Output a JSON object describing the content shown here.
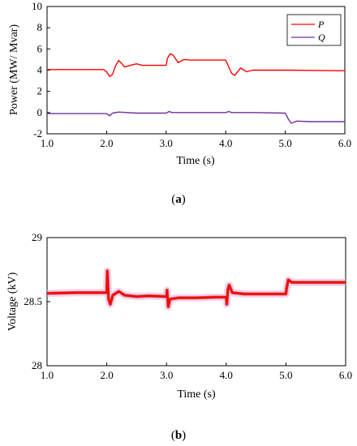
{
  "chart_data": [
    {
      "type": "line",
      "panel_label": "(a)",
      "panel_letter": "a",
      "xlabel": "Time (s)",
      "ylabel": "Power (MW/ Mvar)",
      "xlim": [
        1.0,
        6.0
      ],
      "ylim": [
        -2,
        10
      ],
      "x_ticks": [
        "1.0",
        "2.0",
        "3.0",
        "4.0",
        "5.0",
        "6.0"
      ],
      "y_ticks": [
        "-2",
        "0",
        "2",
        "4",
        "6",
        "8",
        "10"
      ],
      "legend_position": "top-right",
      "series": [
        {
          "name": "P",
          "color": "#ff0000",
          "points": [
            [
              1.0,
              4.05
            ],
            [
              1.95,
              4.05
            ],
            [
              2.0,
              3.85
            ],
            [
              2.05,
              3.4
            ],
            [
              2.1,
              3.6
            ],
            [
              2.15,
              4.4
            ],
            [
              2.2,
              4.9
            ],
            [
              2.25,
              4.65
            ],
            [
              2.3,
              4.3
            ],
            [
              2.4,
              4.45
            ],
            [
              2.5,
              4.6
            ],
            [
              2.6,
              4.45
            ],
            [
              2.8,
              4.45
            ],
            [
              3.0,
              4.45
            ],
            [
              3.02,
              5.1
            ],
            [
              3.07,
              5.55
            ],
            [
              3.12,
              5.4
            ],
            [
              3.2,
              4.7
            ],
            [
              3.3,
              5.0
            ],
            [
              3.4,
              4.95
            ],
            [
              3.6,
              4.95
            ],
            [
              3.8,
              4.95
            ],
            [
              4.0,
              4.95
            ],
            [
              4.05,
              4.3
            ],
            [
              4.1,
              3.7
            ],
            [
              4.15,
              3.5
            ],
            [
              4.25,
              4.2
            ],
            [
              4.35,
              3.85
            ],
            [
              4.45,
              4.0
            ],
            [
              4.6,
              4.0
            ],
            [
              5.0,
              4.0
            ],
            [
              6.0,
              3.95
            ]
          ]
        },
        {
          "name": "Q",
          "color": "#7030a0",
          "points": [
            [
              1.0,
              -0.1
            ],
            [
              2.0,
              -0.1
            ],
            [
              2.05,
              -0.3
            ],
            [
              2.1,
              -0.05
            ],
            [
              2.2,
              0.05
            ],
            [
              2.5,
              -0.05
            ],
            [
              3.0,
              -0.05
            ],
            [
              3.05,
              0.1
            ],
            [
              3.1,
              0.0
            ],
            [
              3.5,
              0.0
            ],
            [
              4.0,
              0.0
            ],
            [
              4.05,
              0.1
            ],
            [
              4.1,
              0.0
            ],
            [
              4.5,
              0.0
            ],
            [
              5.0,
              -0.05
            ],
            [
              5.05,
              -0.6
            ],
            [
              5.1,
              -1.0
            ],
            [
              5.2,
              -0.8
            ],
            [
              5.4,
              -0.85
            ],
            [
              6.0,
              -0.85
            ]
          ]
        }
      ]
    },
    {
      "type": "line",
      "panel_label": "(b)",
      "panel_letter": "b",
      "xlabel": "Time (s)",
      "ylabel": "Voltage (kV)",
      "xlim": [
        1.0,
        6.0
      ],
      "ylim": [
        28,
        29
      ],
      "x_ticks": [
        "1.0",
        "2.0",
        "3.0",
        "4.0",
        "5.0",
        "6.0"
      ],
      "y_ticks": [
        "28",
        "28.5",
        "29"
      ],
      "series": [
        {
          "color": "#ff0000",
          "band_color": "#f0a8e0",
          "points": [
            [
              1.0,
              28.565
            ],
            [
              1.5,
              28.57
            ],
            [
              2.0,
              28.57
            ],
            [
              2.01,
              28.74
            ],
            [
              2.03,
              28.52
            ],
            [
              2.06,
              28.48
            ],
            [
              2.1,
              28.55
            ],
            [
              2.2,
              28.58
            ],
            [
              2.3,
              28.55
            ],
            [
              2.5,
              28.54
            ],
            [
              2.7,
              28.545
            ],
            [
              3.0,
              28.54
            ],
            [
              3.01,
              28.59
            ],
            [
              3.03,
              28.46
            ],
            [
              3.06,
              28.52
            ],
            [
              3.2,
              28.53
            ],
            [
              3.5,
              28.53
            ],
            [
              3.8,
              28.535
            ],
            [
              4.0,
              28.535
            ],
            [
              4.01,
              28.48
            ],
            [
              4.03,
              28.6
            ],
            [
              4.05,
              28.63
            ],
            [
              4.1,
              28.57
            ],
            [
              4.3,
              28.56
            ],
            [
              4.6,
              28.56
            ],
            [
              5.0,
              28.56
            ],
            [
              5.01,
              28.6
            ],
            [
              5.04,
              28.67
            ],
            [
              5.1,
              28.65
            ],
            [
              5.5,
              28.65
            ],
            [
              6.0,
              28.65
            ]
          ]
        }
      ]
    }
  ]
}
